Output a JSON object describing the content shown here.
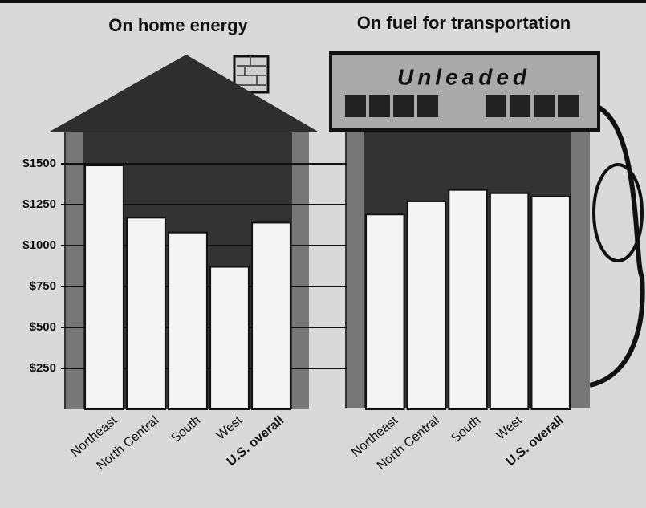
{
  "chart_data": [
    {
      "type": "bar",
      "title": "On home energy",
      "categories": [
        "Northeast",
        "North Central",
        "South",
        "West",
        "U.S. overall"
      ],
      "values": [
        1490,
        1170,
        1080,
        870,
        1140
      ],
      "color": "#f4f4f4",
      "ylim": [
        0,
        1500
      ],
      "yticks": [
        {
          "value": 250,
          "label": "$250"
        },
        {
          "value": 500,
          "label": "$500"
        },
        {
          "value": 750,
          "label": "$750"
        },
        {
          "value": 1000,
          "label": "$1000"
        },
        {
          "value": 1250,
          "label": "$1250"
        },
        {
          "value": 1500,
          "label": "$1500"
        }
      ]
    },
    {
      "type": "bar",
      "title": "On fuel for transportation",
      "pump_label": "Unleaded",
      "categories": [
        "Northeast",
        "North Central",
        "South",
        "West",
        "U.S. overall"
      ],
      "values": [
        1190,
        1270,
        1340,
        1320,
        1300
      ],
      "color": "#f4f4f4",
      "ylim": [
        0,
        1500
      ]
    }
  ]
}
